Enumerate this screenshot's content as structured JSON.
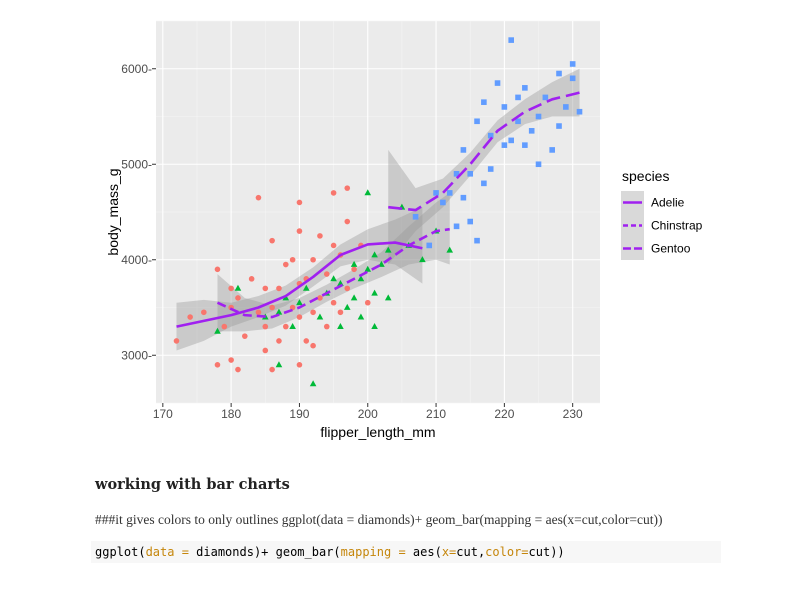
{
  "chart_data": {
    "type": "scatter",
    "xlabel": "flipper_length_mm",
    "ylabel": "body_mass_g",
    "xlim": [
      169,
      234
    ],
    "ylim": [
      2500,
      6500
    ],
    "xticks": [
      170,
      180,
      190,
      200,
      210,
      220,
      230
    ],
    "yticks": [
      3000,
      4000,
      5000,
      6000
    ],
    "ytick_labels": [
      "3000-",
      "4000-",
      "5000-",
      "6000-"
    ],
    "grid": true,
    "legend": {
      "title": "species",
      "position": "right",
      "entries": [
        "Adelie",
        "Chinstrap",
        "Gentoo"
      ]
    },
    "series": [
      {
        "name": "Adelie",
        "color": "#f8766d",
        "marker": "circle",
        "points": [
          [
            172,
            3150
          ],
          [
            174,
            3400
          ],
          [
            176,
            3450
          ],
          [
            178,
            2900
          ],
          [
            178,
            3900
          ],
          [
            179,
            3300
          ],
          [
            180,
            2950
          ],
          [
            180,
            3500
          ],
          [
            180,
            3700
          ],
          [
            181,
            2850
          ],
          [
            181,
            3600
          ],
          [
            182,
            3200
          ],
          [
            183,
            3800
          ],
          [
            184,
            3450
          ],
          [
            184,
            4650
          ],
          [
            185,
            3050
          ],
          [
            185,
            3300
          ],
          [
            185,
            3700
          ],
          [
            186,
            2850
          ],
          [
            186,
            3500
          ],
          [
            186,
            4200
          ],
          [
            187,
            3150
          ],
          [
            187,
            3700
          ],
          [
            188,
            3300
          ],
          [
            188,
            3950
          ],
          [
            189,
            3500
          ],
          [
            189,
            4000
          ],
          [
            190,
            2900
          ],
          [
            190,
            3400
          ],
          [
            190,
            3750
          ],
          [
            190,
            4300
          ],
          [
            190,
            4600
          ],
          [
            191,
            3150
          ],
          [
            191,
            3800
          ],
          [
            192,
            3100
          ],
          [
            192,
            3450
          ],
          [
            192,
            4000
          ],
          [
            193,
            3600
          ],
          [
            193,
            4250
          ],
          [
            194,
            3300
          ],
          [
            194,
            3850
          ],
          [
            195,
            3550
          ],
          [
            195,
            4150
          ],
          [
            195,
            4700
          ],
          [
            196,
            3450
          ],
          [
            196,
            4050
          ],
          [
            197,
            3700
          ],
          [
            197,
            4400
          ],
          [
            197,
            4750
          ],
          [
            198,
            3900
          ],
          [
            199,
            4150
          ],
          [
            200,
            3550
          ]
        ]
      },
      {
        "name": "Chinstrap",
        "color": "#00ba38",
        "marker": "triangle",
        "points": [
          [
            178,
            3250
          ],
          [
            181,
            3700
          ],
          [
            185,
            3400
          ],
          [
            187,
            2900
          ],
          [
            187,
            3450
          ],
          [
            188,
            3600
          ],
          [
            189,
            3300
          ],
          [
            190,
            3550
          ],
          [
            191,
            3700
          ],
          [
            192,
            2700
          ],
          [
            193,
            3400
          ],
          [
            194,
            3650
          ],
          [
            195,
            3800
          ],
          [
            196,
            3300
          ],
          [
            196,
            3750
          ],
          [
            197,
            3500
          ],
          [
            198,
            3600
          ],
          [
            198,
            3950
          ],
          [
            199,
            3400
          ],
          [
            199,
            3800
          ],
          [
            200,
            3900
          ],
          [
            200,
            4700
          ],
          [
            201,
            3300
          ],
          [
            201,
            3650
          ],
          [
            201,
            4050
          ],
          [
            202,
            3950
          ],
          [
            203,
            3600
          ],
          [
            203,
            4100
          ],
          [
            205,
            4550
          ],
          [
            206,
            4150
          ],
          [
            208,
            4000
          ],
          [
            210,
            4300
          ],
          [
            212,
            4100
          ]
        ]
      },
      {
        "name": "Gentoo",
        "color": "#619cff",
        "marker": "square",
        "points": [
          [
            207,
            4450
          ],
          [
            209,
            4150
          ],
          [
            210,
            4700
          ],
          [
            211,
            4600
          ],
          [
            212,
            4700
          ],
          [
            213,
            4900
          ],
          [
            213,
            4350
          ],
          [
            214,
            4650
          ],
          [
            214,
            5150
          ],
          [
            215,
            4400
          ],
          [
            215,
            4900
          ],
          [
            216,
            5450
          ],
          [
            216,
            4200
          ],
          [
            217,
            4800
          ],
          [
            217,
            5650
          ],
          [
            218,
            5300
          ],
          [
            218,
            4950
          ],
          [
            219,
            5850
          ],
          [
            220,
            5200
          ],
          [
            220,
            5600
          ],
          [
            221,
            5250
          ],
          [
            221,
            6300
          ],
          [
            222,
            5450
          ],
          [
            222,
            5700
          ],
          [
            223,
            5800
          ],
          [
            223,
            5200
          ],
          [
            224,
            5350
          ],
          [
            225,
            5000
          ],
          [
            225,
            5500
          ],
          [
            226,
            5700
          ],
          [
            227,
            5150
          ],
          [
            228,
            5400
          ],
          [
            228,
            5950
          ],
          [
            229,
            5600
          ],
          [
            230,
            5900
          ],
          [
            230,
            6050
          ],
          [
            231,
            5550
          ]
        ]
      }
    ],
    "smooth_lines": [
      {
        "name": "Adelie",
        "dash": "solid",
        "x": [
          172,
          176,
          180,
          184,
          188,
          192,
          196,
          200,
          204,
          208
        ],
        "y": [
          3300,
          3360,
          3420,
          3500,
          3620,
          3820,
          4050,
          4160,
          4180,
          4120
        ],
        "band": [
          [
            3050,
            3550
          ],
          [
            3150,
            3580
          ],
          [
            3300,
            3550
          ],
          [
            3400,
            3620
          ],
          [
            3520,
            3730
          ],
          [
            3720,
            3920
          ],
          [
            3930,
            4160
          ],
          [
            4000,
            4320
          ],
          [
            3950,
            4420
          ],
          [
            3750,
            4550
          ]
        ]
      },
      {
        "name": "Chinstrap",
        "dash": "dashed",
        "x": [
          178,
          182,
          186,
          190,
          194,
          198,
          202,
          206,
          210,
          212
        ],
        "y": [
          3550,
          3420,
          3400,
          3500,
          3650,
          3800,
          3950,
          4150,
          4300,
          4320
        ],
        "band": [
          [
            3250,
            3850
          ],
          [
            3250,
            3600
          ],
          [
            3280,
            3520
          ],
          [
            3400,
            3600
          ],
          [
            3560,
            3740
          ],
          [
            3700,
            3900
          ],
          [
            3820,
            4080
          ],
          [
            3950,
            4350
          ],
          [
            4000,
            4600
          ],
          [
            3950,
            4700
          ]
        ]
      },
      {
        "name": "Gentoo",
        "dash": "longdash",
        "x": [
          203,
          207,
          211,
          215,
          219,
          223,
          227,
          231
        ],
        "y": [
          4550,
          4520,
          4700,
          5000,
          5350,
          5550,
          5680,
          5750
        ],
        "band": [
          [
            3950,
            5150
          ],
          [
            4300,
            4750
          ],
          [
            4550,
            4850
          ],
          [
            4880,
            5120
          ],
          [
            5230,
            5460
          ],
          [
            5420,
            5680
          ],
          [
            5500,
            5860
          ],
          [
            5500,
            6000
          ]
        ]
      }
    ]
  },
  "doc": {
    "heading": "working with bar charts",
    "paragraph": "###it gives colors to only outlines ggplot(data = diamonds)+ geom_bar(mapping = aes(x=cut,color=cut))",
    "code": {
      "t1": "ggplot(",
      "t2": "data =",
      "t3": " diamonds)+ geom_bar(",
      "t4": "mapping =",
      "t5": " aes(",
      "t6": "x=",
      "t7": "cut,",
      "t8": "color=",
      "t9": "cut))"
    }
  }
}
